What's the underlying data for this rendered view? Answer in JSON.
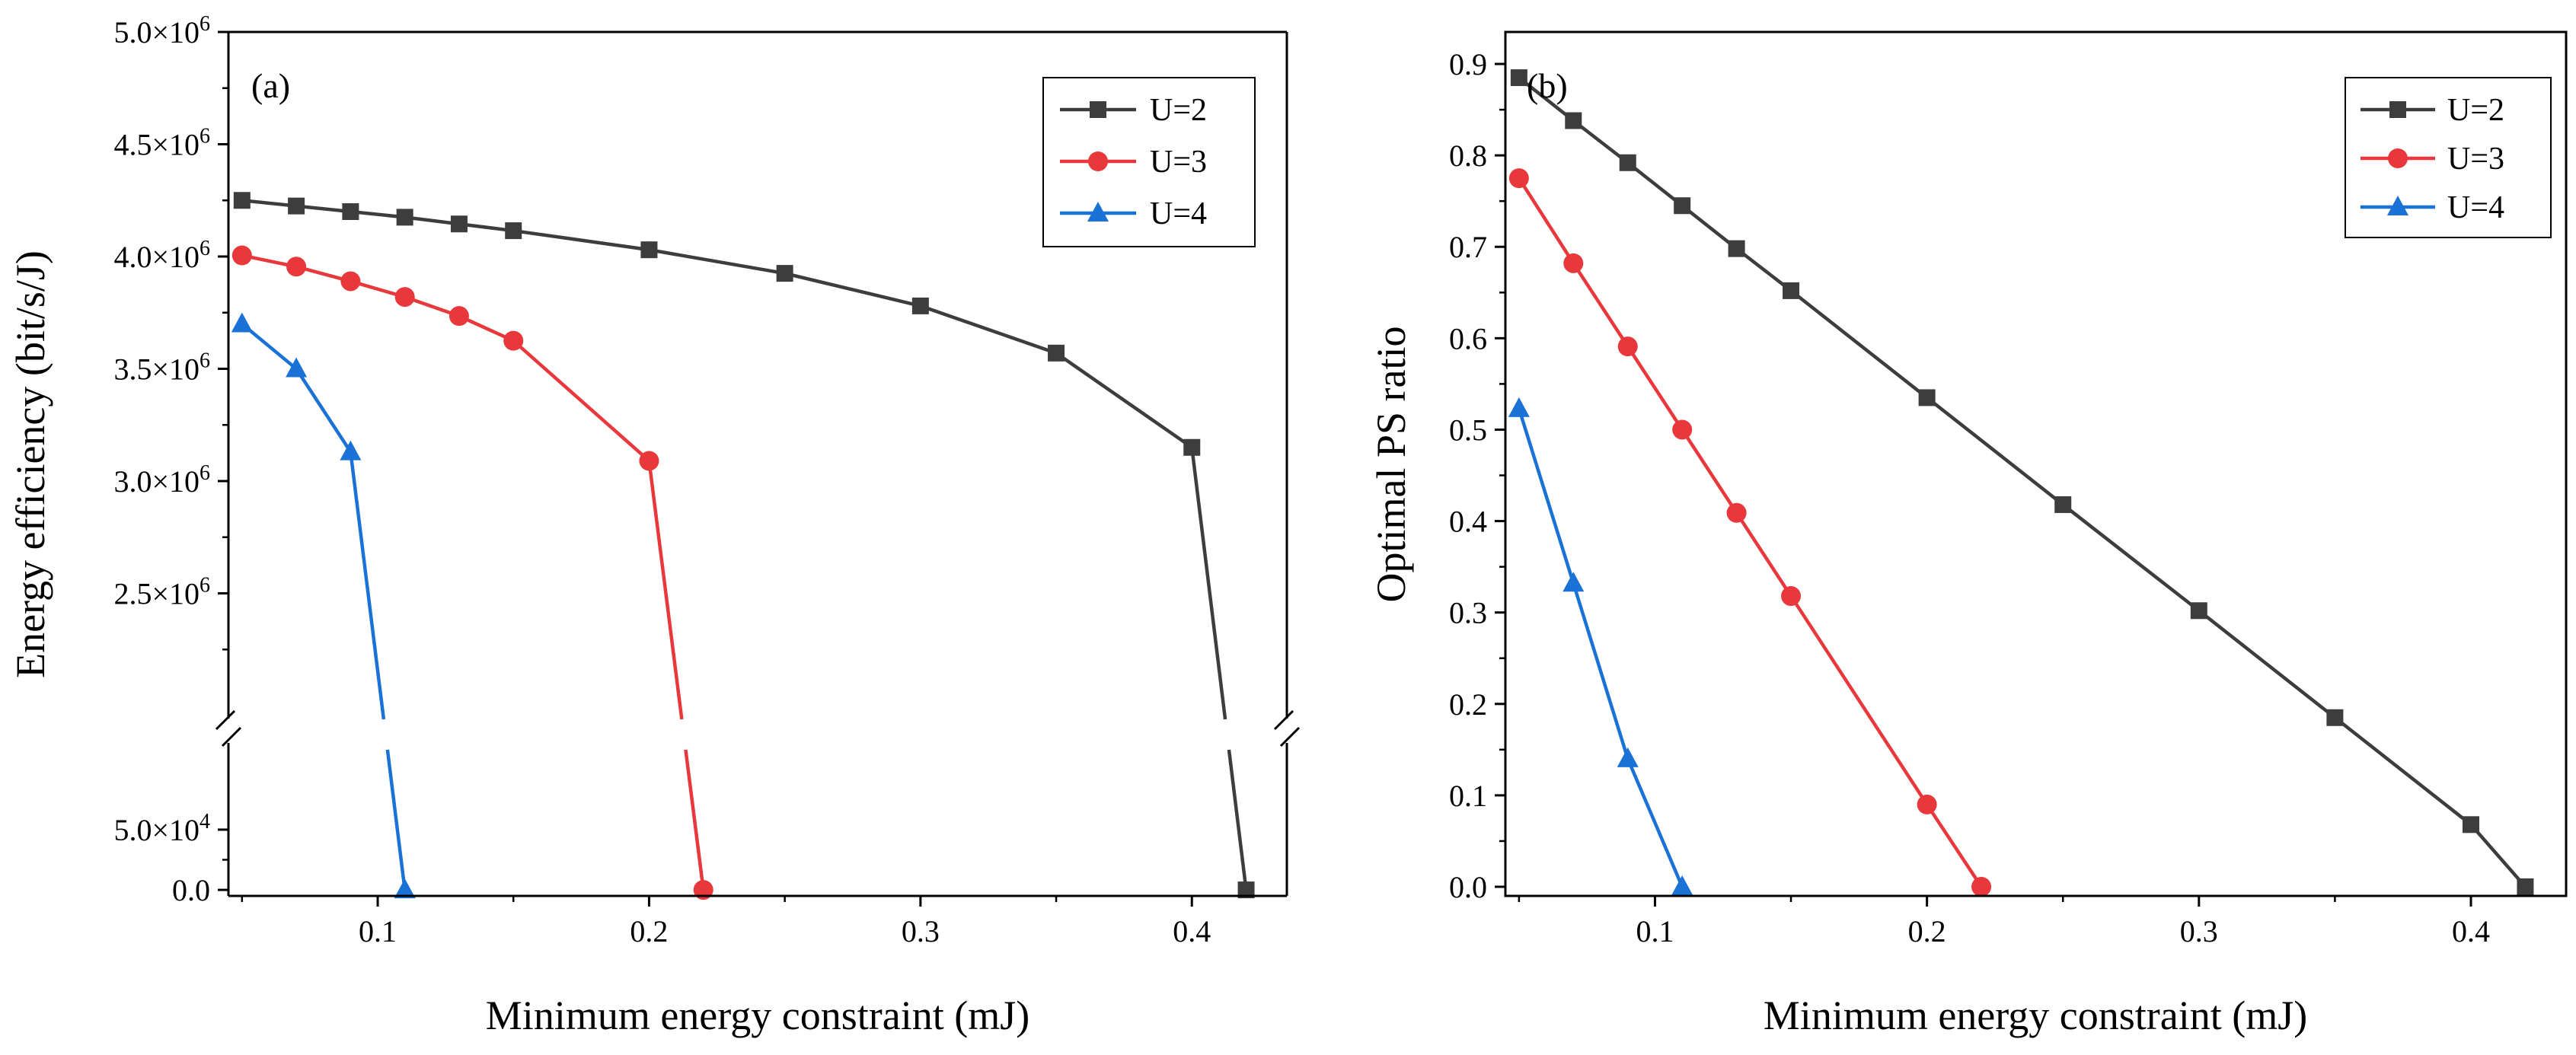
{
  "chart_data": [
    {
      "type": "line",
      "panel_label": "(a)",
      "xlabel": "Minimum energy constraint (mJ)",
      "ylabel": "Energy efficiency (bit/s/J)",
      "xlim": [
        0.045,
        0.435
      ],
      "xticks": [
        "0.1",
        "0.2",
        "0.3",
        "0.4"
      ],
      "y_axis_broken": true,
      "ylim_lower": [
        -5000,
        110000
      ],
      "ylim_upper": [
        2000000,
        5000000
      ],
      "yticks_lower": [
        {
          "value": 0,
          "label": "0.0"
        },
        {
          "value": 50000,
          "label": "5.0×10",
          "exp": "4"
        }
      ],
      "yticks_upper": [
        {
          "value": 2500000,
          "label": "2.5×10",
          "exp": "6"
        },
        {
          "value": 3000000,
          "label": "3.0×10",
          "exp": "6"
        },
        {
          "value": 3500000,
          "label": "3.5×10",
          "exp": "6"
        },
        {
          "value": 4000000,
          "label": "4.0×10",
          "exp": "6"
        },
        {
          "value": 4500000,
          "label": "4.5×10",
          "exp": "6"
        },
        {
          "value": 5000000,
          "label": "5.0×10",
          "exp": "6"
        }
      ],
      "legend_position": "top-right",
      "series": [
        {
          "name": "U=2",
          "marker": "square",
          "color": "#3d3d3d",
          "x": [
            0.05,
            0.07,
            0.09,
            0.11,
            0.13,
            0.15,
            0.2,
            0.25,
            0.3,
            0.35,
            0.4,
            0.42
          ],
          "y": [
            4250000,
            4225000,
            4200000,
            4175000,
            4145000,
            4115000,
            4030000,
            3925000,
            3780000,
            3570000,
            3150000,
            0
          ]
        },
        {
          "name": "U=3",
          "marker": "circle",
          "color": "#e8383b",
          "x": [
            0.05,
            0.07,
            0.09,
            0.11,
            0.13,
            0.15,
            0.2,
            0.22
          ],
          "y": [
            4005000,
            3955000,
            3890000,
            3820000,
            3735000,
            3625000,
            3090000,
            0
          ]
        },
        {
          "name": "U=4",
          "marker": "triangle",
          "color": "#1b72d6",
          "x": [
            0.05,
            0.07,
            0.09,
            0.11
          ],
          "y": [
            3700000,
            3500000,
            3130000,
            0
          ]
        }
      ]
    },
    {
      "type": "line",
      "panel_label": "(b)",
      "xlabel": "Minimum energy constraint (mJ)",
      "ylabel": "Optimal PS ratio",
      "xlim": [
        0.045,
        0.435
      ],
      "ylim": [
        -0.01,
        0.935
      ],
      "xticks": [
        "0.1",
        "0.2",
        "0.3",
        "0.4"
      ],
      "yticks": [
        "0.0",
        "0.1",
        "0.2",
        "0.3",
        "0.4",
        "0.5",
        "0.6",
        "0.7",
        "0.8",
        "0.9"
      ],
      "legend_position": "top-right",
      "series": [
        {
          "name": "U=2",
          "marker": "square",
          "color": "#3d3d3d",
          "x": [
            0.05,
            0.07,
            0.09,
            0.11,
            0.13,
            0.15,
            0.2,
            0.25,
            0.3,
            0.35,
            0.4,
            0.42
          ],
          "y": [
            0.885,
            0.838,
            0.792,
            0.745,
            0.698,
            0.652,
            0.535,
            0.418,
            0.302,
            0.185,
            0.068,
            0.0
          ]
        },
        {
          "name": "U=3",
          "marker": "circle",
          "color": "#e8383b",
          "x": [
            0.05,
            0.07,
            0.09,
            0.11,
            0.13,
            0.15,
            0.2,
            0.22
          ],
          "y": [
            0.775,
            0.682,
            0.591,
            0.5,
            0.409,
            0.318,
            0.09,
            0.0
          ]
        },
        {
          "name": "U=4",
          "marker": "triangle",
          "color": "#1b72d6",
          "x": [
            0.05,
            0.07,
            0.09,
            0.11
          ],
          "y": [
            0.523,
            0.332,
            0.14,
            0.0
          ]
        }
      ]
    }
  ]
}
